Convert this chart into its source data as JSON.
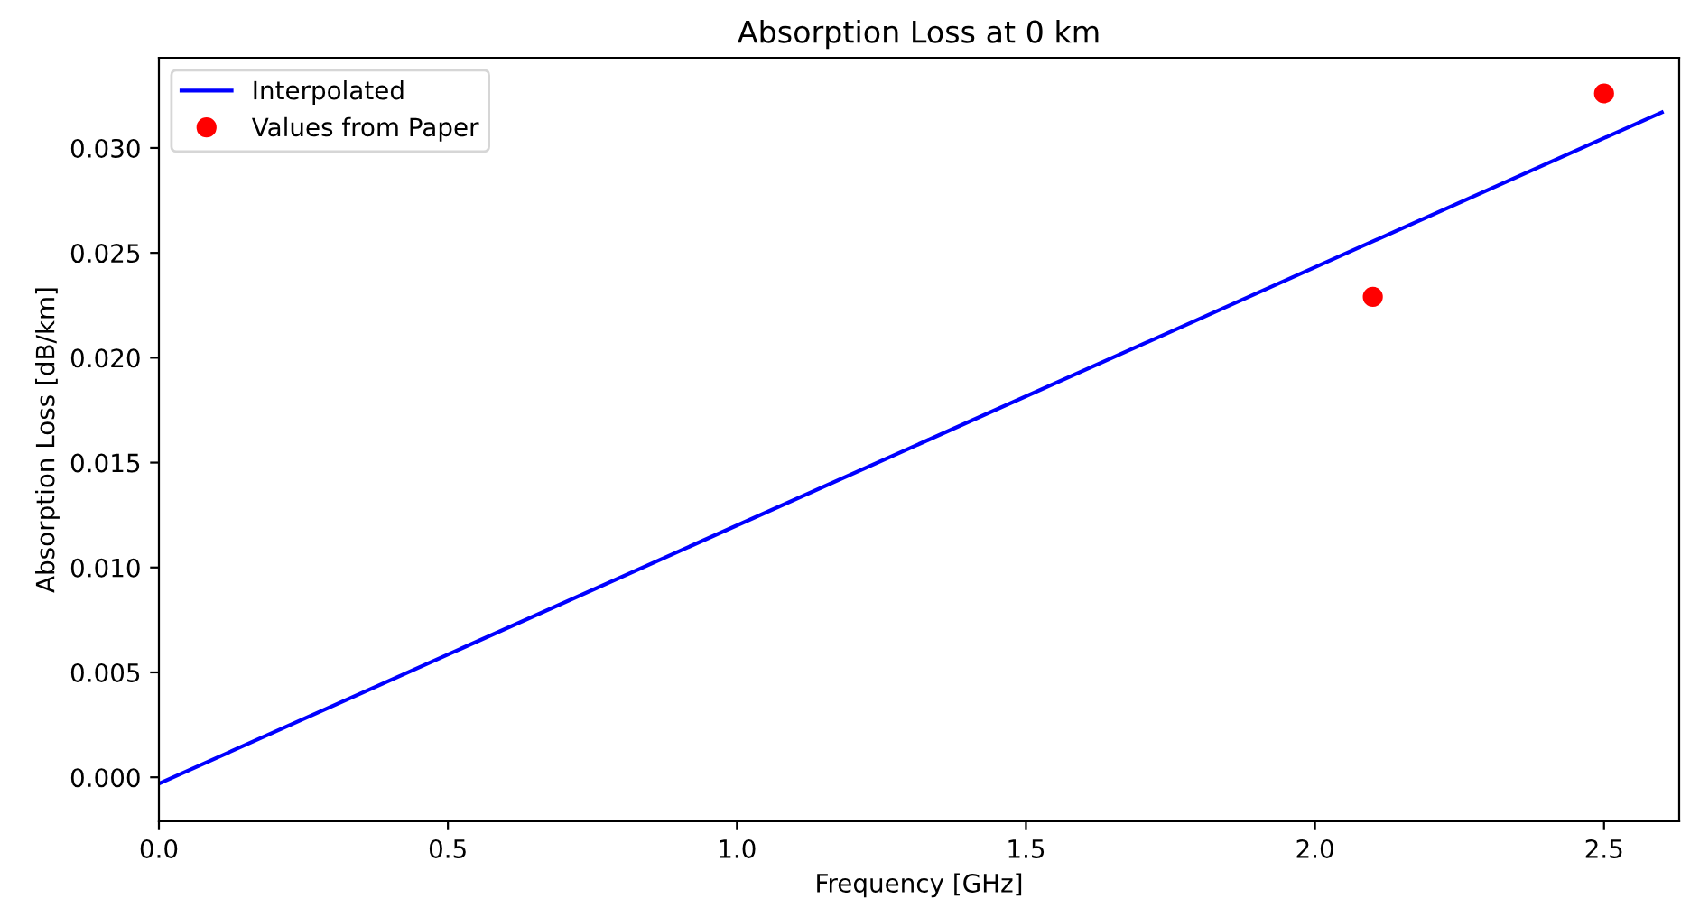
{
  "chart_data": {
    "type": "line",
    "title": "Absorption Loss at 0 km",
    "xlabel": "Frequency [GHz]",
    "ylabel": "Absorption Loss [dB/km]",
    "series": [
      {
        "name": "Interpolated",
        "color": "#0000ff",
        "x": [
          0,
          2.6
        ],
        "values": [
          -0.0003,
          0.0317
        ]
      },
      {
        "name": "Values from Paper",
        "type": "scatter",
        "color": "#ff0000",
        "marker": "circle",
        "x": [
          2.1,
          2.5
        ],
        "values": [
          0.0229,
          0.0326
        ]
      }
    ],
    "xlim": [
      0,
      2.63
    ],
    "xticks": [
      {
        "value": 0,
        "label": "0.0"
      },
      0.5,
      {
        "value": 1,
        "label": "1.0"
      },
      1.5,
      {
        "value": 2,
        "label": "2.0"
      },
      2.5
    ],
    "ylim": [
      -0.0021,
      0.0343
    ],
    "yticks": [
      {
        "value": 0,
        "label": "0.000"
      },
      0.005,
      {
        "value": 0.01,
        "label": "0.010"
      },
      0.015,
      {
        "value": 0.02,
        "label": "0.020"
      },
      0.025,
      {
        "value": 0.03,
        "label": "0.030"
      }
    ],
    "grid": false,
    "legend": "top left"
  }
}
